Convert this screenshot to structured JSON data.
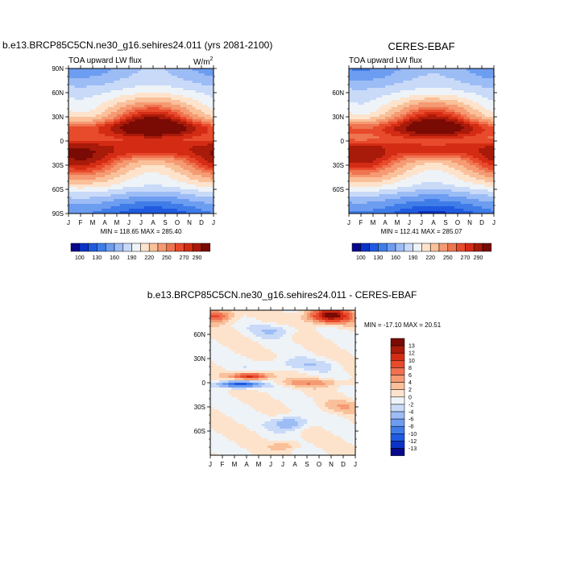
{
  "chart_data": [
    {
      "type": "heatmap",
      "id": "model",
      "title": "b.e13.BRCP85C5CN.ne30_g16.sehires24.011 (yrs 2081-2100)",
      "subtitle_left": "TOA upward LW flux",
      "units": "W/m",
      "units_superscript": "2",
      "x_ticks": [
        "J",
        "F",
        "M",
        "A",
        "M",
        "J",
        "J",
        "A",
        "S",
        "O",
        "N",
        "D",
        "J"
      ],
      "y_ticks": [
        "90N",
        "60N",
        "30N",
        "0",
        "30S",
        "60S",
        "90S"
      ],
      "ylim": [
        -90,
        90
      ],
      "min_max_text": "MIN = 118.65 MAX = 285.40",
      "colorbar_labels": [
        "100",
        "130",
        "160",
        "190",
        "220",
        "250",
        "270",
        "290"
      ]
    },
    {
      "type": "heatmap",
      "id": "obs",
      "title": "CERES-EBAF",
      "subtitle_left": "TOA upward LW flux",
      "x_ticks": [
        "J",
        "F",
        "M",
        "A",
        "M",
        "J",
        "J",
        "A",
        "S",
        "O",
        "N",
        "D",
        "J"
      ],
      "y_ticks": [
        "60N",
        "30N",
        "0",
        "30S",
        "60S"
      ],
      "ylim": [
        -90,
        90
      ],
      "min_max_text": "MIN = 112.41 MAX = 285.07",
      "colorbar_labels": [
        "100",
        "130",
        "160",
        "190",
        "220",
        "250",
        "270",
        "290"
      ]
    },
    {
      "type": "heatmap",
      "id": "diff",
      "title": "b.e13.BRCP85C5CN.ne30_g16.sehires24.011 - CERES-EBAF",
      "x_ticks": [
        "J",
        "F",
        "M",
        "A",
        "M",
        "J",
        "J",
        "A",
        "S",
        "O",
        "N",
        "D",
        "J"
      ],
      "y_ticks": [
        "60N",
        "30N",
        "0",
        "30S",
        "60S"
      ],
      "ylim": [
        -90,
        90
      ],
      "min_max_text": "MIN = -17.10 MAX =  20.51",
      "colorbar_labels": [
        "13",
        "12",
        "10",
        "8",
        "6",
        "4",
        "2",
        "0",
        "-2",
        "-4",
        "-6",
        "-8",
        "-10",
        "-12",
        "-13"
      ]
    }
  ],
  "palettes": {
    "flux": [
      "#08088c",
      "#0a33c8",
      "#1f5ae0",
      "#3f7ce8",
      "#6d9df0",
      "#9cbcf6",
      "#c8daf8",
      "#eef3f8",
      "#fde3cc",
      "#f9c09a",
      "#f59a72",
      "#ef7450",
      "#e84a2c",
      "#d42c14",
      "#a81a0a",
      "#7a0a04"
    ],
    "diff": [
      "#7a0a04",
      "#a81a0a",
      "#d42c14",
      "#e84a2c",
      "#f07050",
      "#f59a72",
      "#f9c09a",
      "#fde3cc",
      "#eef3f8",
      "#c8daf8",
      "#9cbcf6",
      "#6d9df0",
      "#3f7ce8",
      "#1f5ae0",
      "#0a33c8",
      "#08088c"
    ]
  }
}
